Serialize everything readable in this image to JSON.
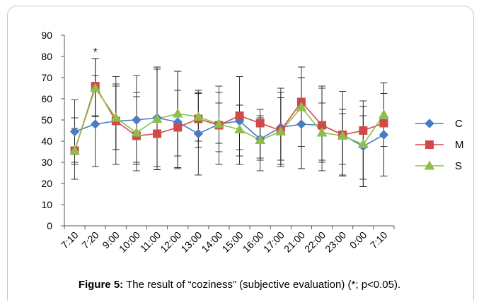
{
  "caption": {
    "label": "Figure 5:",
    "text": "The result of “coziness” (subjective evaluation) (*; p<0.05)."
  },
  "chart_data": {
    "type": "line",
    "categories": [
      "7:10",
      "7:20",
      "9:00",
      "10:00",
      "11:00",
      "12:00",
      "13:00",
      "14:00",
      "15:00",
      "16:00",
      "17:00",
      "21:00",
      "22:00",
      "23:00",
      "0:00",
      "7:10"
    ],
    "ylim": [
      0,
      90
    ],
    "yticks": [
      0,
      10,
      20,
      30,
      40,
      50,
      60,
      70,
      80,
      90
    ],
    "grid": false,
    "legend_position": "right",
    "annotations": [
      {
        "category_index": 1,
        "text": "*"
      }
    ],
    "series": [
      {
        "name": "C",
        "color": "#4a7cc0",
        "marker": "diamond",
        "values": [
          44.5,
          48,
          49.5,
          50,
          51,
          49,
          43.5,
          48,
          49.5,
          41,
          46.5,
          48,
          47.5,
          43,
          37.5,
          43
        ],
        "error_low": [
          22,
          28,
          36,
          30,
          26.5,
          27,
          24,
          29,
          29,
          31,
          29,
          27,
          30,
          24,
          18.5,
          23.5
        ],
        "error_high": [
          59.5,
          71,
          70.5,
          71,
          75,
          73,
          63,
          66,
          70.5,
          52,
          65,
          70,
          66,
          63.5,
          56.5,
          62.5
        ]
      },
      {
        "name": "M",
        "color": "#d14a4a",
        "marker": "square",
        "values": [
          35.5,
          66,
          49.5,
          42.5,
          43.5,
          46.5,
          50.5,
          47.5,
          52,
          48.5,
          45,
          58.5,
          47.5,
          43,
          45,
          48.5
        ],
        "error_low": [
          29,
          51.5,
          29,
          26,
          26.5,
          27.5,
          40,
          39,
          36,
          26,
          28,
          27,
          26,
          23.5,
          18.5,
          23.5
        ],
        "error_high": [
          51,
          79,
          67,
          63,
          75,
          64,
          62.5,
          63,
          57,
          51,
          60.5,
          75,
          65,
          53,
          59,
          67.5
        ]
      },
      {
        "name": "S",
        "color": "#8cbf4a",
        "marker": "triangle",
        "values": [
          35.5,
          65,
          51,
          44,
          50.5,
          53,
          51.5,
          48,
          45.5,
          40.5,
          44.5,
          56,
          44,
          42.5,
          38.5,
          52.5
        ],
        "error_low": [
          30,
          52,
          36,
          29,
          28,
          33,
          37,
          35,
          33,
          32,
          31,
          37.5,
          31,
          29,
          22,
          37.5
        ],
        "error_high": [
          46,
          79,
          66,
          61,
          74,
          73,
          64,
          58,
          57,
          55,
          63,
          70,
          58,
          55,
          52,
          67.5
        ]
      }
    ]
  }
}
